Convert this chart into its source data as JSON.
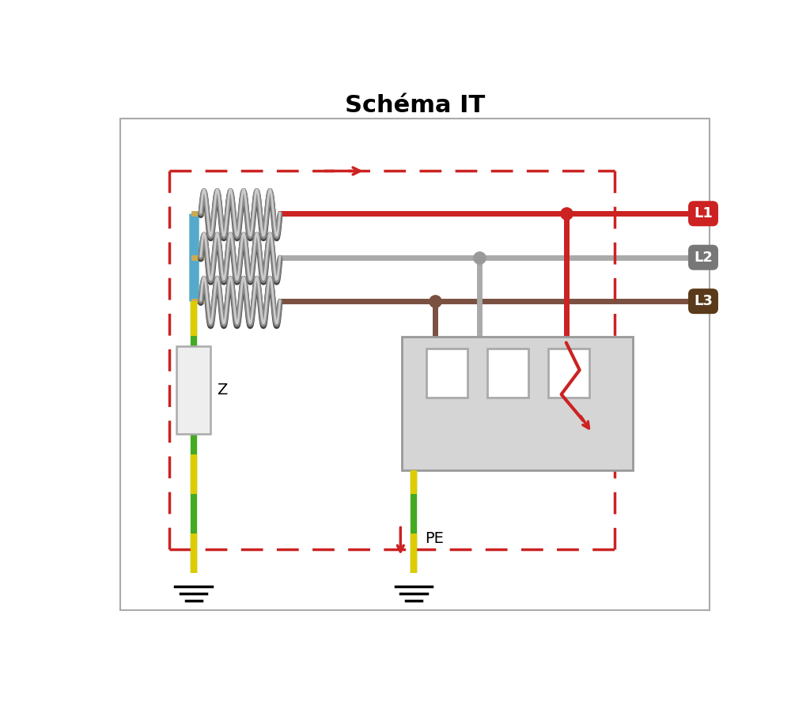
{
  "title": "Schéma IT",
  "title_fontsize": 22,
  "title_fontweight": "bold",
  "bg_color": "#ffffff",
  "dashed_red": "#cc2222",
  "line_L1_color": "#cc2222",
  "line_L2_color": "#aaaaaa",
  "line_L3_color": "#7a5040",
  "cyan_color": "#55aacc",
  "tan_color": "#ccaa55",
  "L1_bg": "#cc2222",
  "L2_bg": "#777777",
  "L3_bg": "#5a3a1a",
  "L1_label": "L1",
  "L2_label": "L2",
  "L3_label": "L3",
  "PE_label": "PE",
  "Z_label": "Z",
  "ground_green": "#44aa22",
  "ground_yellow": "#ddcc00",
  "box_fill": "#d5d5d5",
  "box_edge": "#999999"
}
